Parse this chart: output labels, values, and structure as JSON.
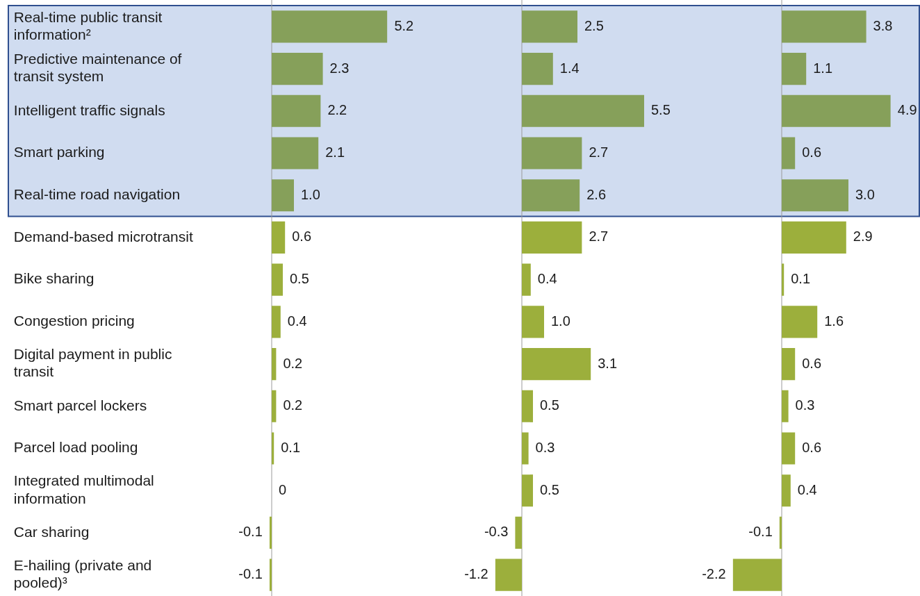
{
  "chart_data": [
    {
      "type": "bar",
      "orientation": "horizontal",
      "tick_labels": "y",
      "categories": [
        "Real-time public transit information²",
        "Predictive maintenance of transit system",
        "Intelligent traffic signals",
        "Smart parking",
        "Real-time road navigation",
        "Demand-based microtransit",
        "Bike sharing",
        "Congestion pricing",
        "Digital payment in public transit",
        "Smart parcel lockers",
        "Parcel load pooling",
        "Integrated multimodal information",
        "Car sharing",
        "E-hailing (private and pooled)³"
      ],
      "values": [
        5.2,
        2.3,
        2.2,
        2.1,
        1.0,
        0.6,
        0.5,
        0.4,
        0.2,
        0.2,
        0.1,
        0,
        -0.1,
        -0.1
      ],
      "value_labels": [
        "5.2",
        "2.3",
        "2.2",
        "2.1",
        "1.0",
        "0.6",
        "0.5",
        "0.4",
        "0.2",
        "0.2",
        "0.1",
        "0",
        "-0.1",
        "-0.1"
      ],
      "colors": [
        "#86a05a",
        "#86a05a",
        "#86a05a",
        "#86a05a",
        "#86a05a",
        "#9caf3c",
        "#9caf3c",
        "#9caf3c",
        "#9caf3c",
        "#9caf3c",
        "#9caf3c",
        "#9caf3c",
        "#9caf3c",
        "#9caf3c"
      ],
      "bands": [
        {
          "axis": "y",
          "from": "Real-time public transit information²",
          "to": "Real-time road navigation",
          "color": "#d0dcf0"
        }
      ]
    },
    {
      "type": "bar",
      "orientation": "horizontal",
      "tick_labels": false,
      "values": [
        2.5,
        1.4,
        5.5,
        2.7,
        2.6,
        2.7,
        0.4,
        1.0,
        3.1,
        0.5,
        0.3,
        0.5,
        -0.3,
        -1.2
      ],
      "value_labels": [
        "2.5",
        "1.4",
        "5.5",
        "2.7",
        "2.6",
        "2.7",
        "0.4",
        "1.0",
        "3.1",
        "0.5",
        "0.3",
        "0.5",
        "-0.3",
        "-1.2"
      ],
      "colors": [
        "#86a05a",
        "#86a05a",
        "#86a05a",
        "#86a05a",
        "#86a05a",
        "#9caf3c",
        "#9caf3c",
        "#9caf3c",
        "#9caf3c",
        "#9caf3c",
        "#9caf3c",
        "#9caf3c",
        "#9caf3c",
        "#9caf3c"
      ]
    },
    {
      "type": "bar",
      "orientation": "horizontal",
      "tick_labels": false,
      "values": [
        3.8,
        1.1,
        4.9,
        0.6,
        3.0,
        2.9,
        0.1,
        1.6,
        0.6,
        0.3,
        0.6,
        0.4,
        -0.1,
        -2.2
      ],
      "value_labels": [
        "3.8",
        "1.1",
        "4.9",
        "0.6",
        "3.0",
        "2.9",
        "0.1",
        "1.6",
        "0.6",
        "0.3",
        "0.6",
        "0.4",
        "-0.1",
        "-2.2"
      ],
      "colors": [
        "#86a05a",
        "#86a05a",
        "#86a05a",
        "#86a05a",
        "#86a05a",
        "#9caf3c",
        "#9caf3c",
        "#9caf3c",
        "#9caf3c",
        "#9caf3c",
        "#9caf3c",
        "#9caf3c",
        "#9caf3c",
        "#9caf3c"
      ]
    }
  ]
}
